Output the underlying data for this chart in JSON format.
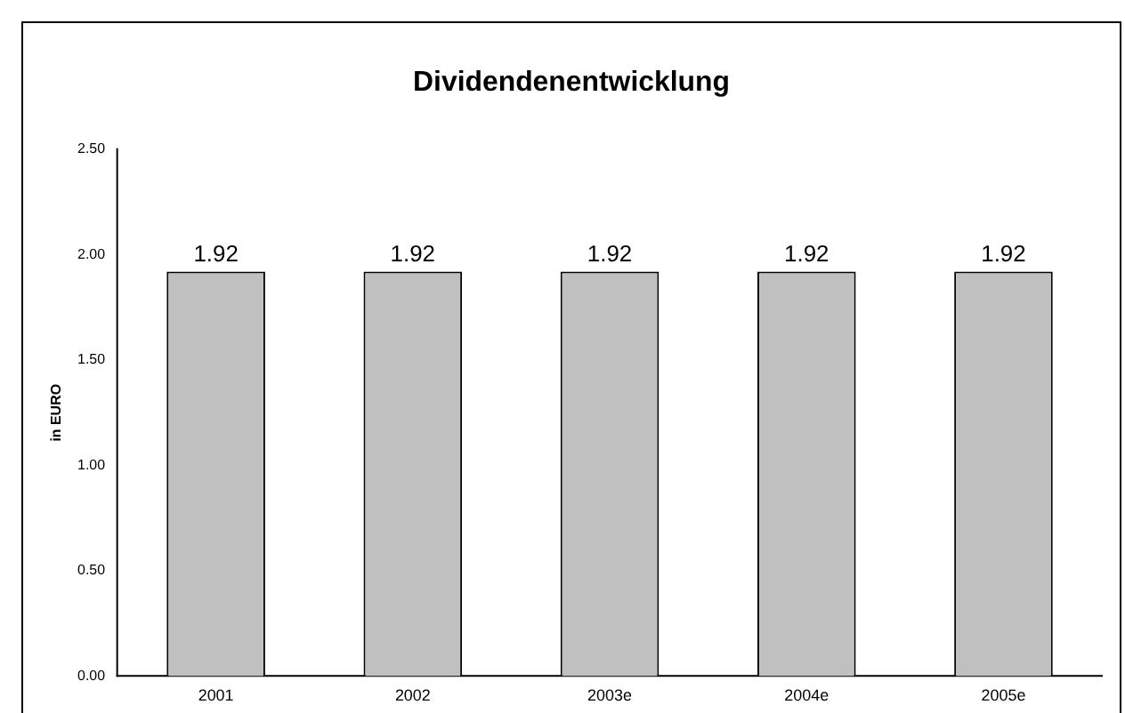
{
  "chart_data": {
    "type": "bar",
    "title": "Dividendenentwicklung",
    "ylabel": "in EURO",
    "categories": [
      "2001",
      "2002",
      "2003e",
      "2004e",
      "2005e"
    ],
    "values": [
      1.92,
      1.92,
      1.92,
      1.92,
      1.92
    ],
    "color": "#c0c0c0",
    "ylim": [
      0,
      2.5
    ],
    "yticks": [
      {
        "value": 0,
        "label": "0.00"
      },
      {
        "value": 0.5,
        "label": "0.50"
      },
      {
        "value": 1,
        "label": "1.00"
      },
      {
        "value": 1.5,
        "label": "1.50"
      },
      {
        "value": 2,
        "label": "2.00"
      },
      {
        "value": 2.5,
        "label": "2.50"
      }
    ],
    "data_labels": true,
    "grid": false,
    "legend": false
  }
}
